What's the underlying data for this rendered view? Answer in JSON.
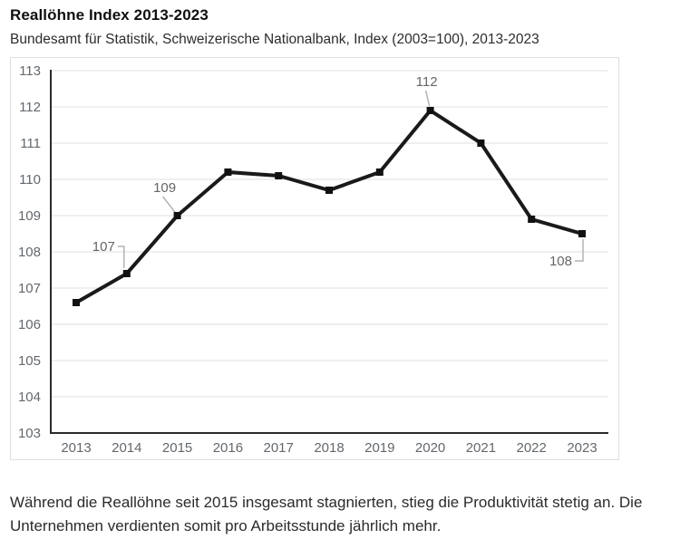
{
  "header": {
    "title": "Reallöhne Index 2013-2023",
    "subtitle": "Bundesamt für Statistik, Schweizerische Nationalbank, Index (2003=100), 2013-2023"
  },
  "chart_data": {
    "type": "line",
    "title": "Reallöhne Index 2013-2023",
    "source": "Bundesamt für Statistik, Schweizerische Nationalbank",
    "x": [
      "2013",
      "2014",
      "2015",
      "2016",
      "2017",
      "2018",
      "2019",
      "2020",
      "2021",
      "2022",
      "2023"
    ],
    "series": [
      {
        "name": "Reallöhne Index (2003=100)",
        "values": [
          106.6,
          107.4,
          109.0,
          110.2,
          110.1,
          109.7,
          110.2,
          111.9,
          111.0,
          108.9,
          108.5
        ]
      }
    ],
    "ylim": [
      103,
      113
    ],
    "ytick_step": 1,
    "yticks": [
      103,
      104,
      105,
      106,
      107,
      108,
      109,
      110,
      111,
      112,
      113
    ],
    "grid": true,
    "legend_position": "none",
    "marker": "square",
    "annotations": [
      {
        "x": "2014",
        "text": "107",
        "style": "elbow-down"
      },
      {
        "x": "2015",
        "text": "109",
        "style": "diagonal"
      },
      {
        "x": "2020",
        "text": "112",
        "style": "above"
      },
      {
        "x": "2023",
        "text": "108",
        "style": "elbow-up"
      }
    ]
  },
  "footer": {
    "text": "Während die Reallöhne seit 2015 insgesamt stagnierten, stieg die Produktivität stetig an. Die Unternehmen verdienten somit pro Arbeitsstunde jährlich mehr."
  },
  "colors": {
    "line": "#1a1a1a",
    "marker": "#111111",
    "grid": "#e5e5e5",
    "axis": "#2a2a2a",
    "tick_label": "#63686d",
    "annotation_text": "#666666",
    "connector": "#b3b3b3",
    "frame_border": "#dedede"
  }
}
